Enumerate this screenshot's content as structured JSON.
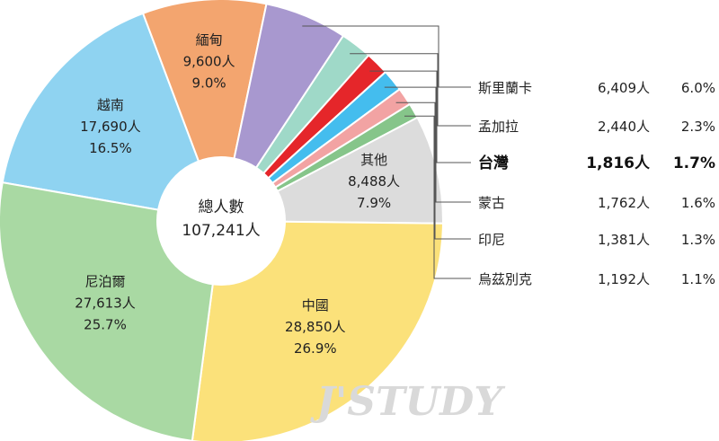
{
  "chart_data": {
    "type": "pie",
    "variant": "donut",
    "center": {
      "title": "總人數",
      "total": "107,241人"
    },
    "slices": [
      {
        "name": "越南",
        "count": "17,690人",
        "pct": "16.5%",
        "value": 16.5,
        "color": "#8fd3f1",
        "label": "inside"
      },
      {
        "name": "緬甸",
        "count": "9,600人",
        "pct": "9.0%",
        "value": 9.0,
        "color": "#f3a56f",
        "label": "inside"
      },
      {
        "name": "斯里蘭卡",
        "count": "6,409人",
        "pct": "6.0%",
        "value": 6.0,
        "color": "#a898cf",
        "label": "side"
      },
      {
        "name": "孟加拉",
        "count": "2,440人",
        "pct": "2.3%",
        "value": 2.3,
        "color": "#9fd9c8",
        "label": "side"
      },
      {
        "name": "台灣",
        "count": "1,816人",
        "pct": "1.7%",
        "value": 1.7,
        "color": "#e5262a",
        "label": "side",
        "highlight": true
      },
      {
        "name": "蒙古",
        "count": "1,762人",
        "pct": "1.6%",
        "value": 1.6,
        "color": "#44bdee",
        "label": "side"
      },
      {
        "name": "印尼",
        "count": "1,381人",
        "pct": "1.3%",
        "value": 1.3,
        "color": "#f2a3a3",
        "label": "side"
      },
      {
        "name": "烏茲別克",
        "count": "1,192人",
        "pct": "1.1%",
        "value": 1.1,
        "color": "#86c58a",
        "label": "side"
      },
      {
        "name": "其他",
        "count": "8,488人",
        "pct": "7.9%",
        "value": 7.9,
        "color": "#dcdcdc",
        "label": "inside"
      },
      {
        "name": "中國",
        "count": "28,850人",
        "pct": "26.9%",
        "value": 26.9,
        "color": "#fbe17a",
        "label": "inside"
      },
      {
        "name": "尼泊爾",
        "count": "27,613人",
        "pct": "25.7%",
        "value": 25.7,
        "color": "#a9d9a3",
        "label": "inside"
      }
    ]
  },
  "watermark": "J'STUDY"
}
